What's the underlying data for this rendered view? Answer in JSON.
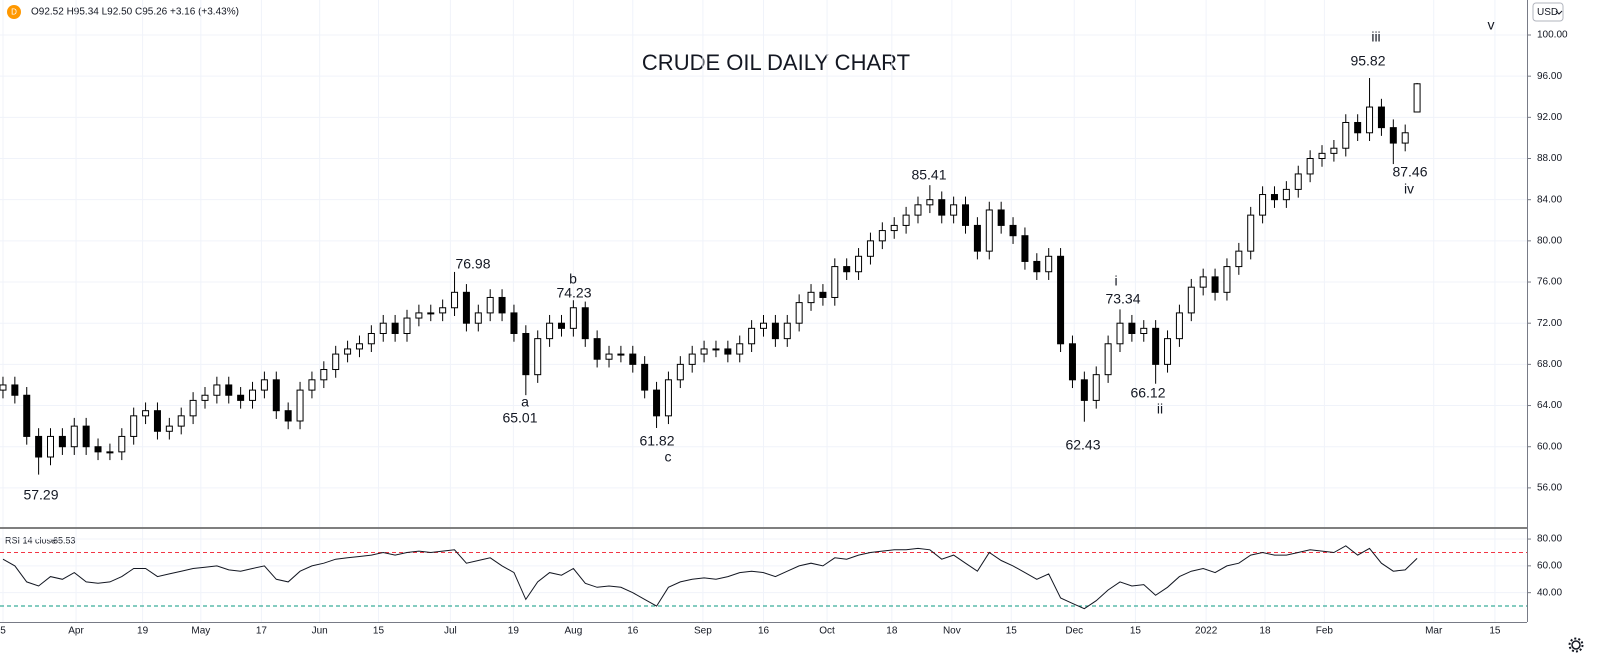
{
  "header": {
    "symbol_icon": "D",
    "ohlc": "O92.52 H95.34 L92.50 C95.26 +3.16 (+3.43%)",
    "currency": "USD"
  },
  "chart_data": [
    {
      "type": "candlestick",
      "title": "CRUDE OIL DAILY CHART",
      "grid": true,
      "up_color": "#ffffff",
      "down_color": "#000000",
      "edge_color": "#000000",
      "annotations": [
        "57.29",
        "a",
        "65.01",
        "76.98",
        "b",
        "74.23",
        "61.82",
        "c",
        "85.41",
        "i",
        "73.34",
        "62.43",
        "66.12",
        "ii",
        "iii",
        "95.82",
        "87.46",
        "iv",
        "v"
      ],
      "xlim": [
        -0.5,
        256.5
      ],
      "ylim": [
        52.2,
        103.4
      ],
      "yticks": [
        {
          "value": 56,
          "label": "56.00"
        },
        {
          "value": 60,
          "label": "60.00"
        },
        {
          "value": 64,
          "label": "64.00"
        },
        {
          "value": 68,
          "label": "68.00"
        },
        {
          "value": 72,
          "label": "72.00"
        },
        {
          "value": 76,
          "label": "76.00"
        },
        {
          "value": 80,
          "label": "80.00"
        },
        {
          "value": 84,
          "label": "84.00"
        },
        {
          "value": 88,
          "label": "88.00"
        },
        {
          "value": 92,
          "label": "92.00"
        },
        {
          "value": 96,
          "label": "96.00"
        },
        {
          "value": 100,
          "label": "100.00"
        }
      ],
      "x": [
        0,
        2,
        4,
        6,
        8,
        10,
        12,
        14,
        16,
        18,
        20,
        22,
        24,
        26,
        28,
        30,
        32,
        34,
        36,
        38,
        40,
        42,
        44,
        46,
        48,
        50,
        52,
        54,
        56,
        58,
        60,
        62,
        64,
        66,
        68,
        70,
        72,
        74,
        76,
        78,
        80,
        82,
        84,
        86,
        88,
        90,
        92,
        94,
        96,
        98,
        100,
        102,
        104,
        106,
        108,
        110,
        112,
        114,
        116,
        118,
        120,
        122,
        124,
        126,
        128,
        130,
        132,
        134,
        136,
        138,
        140,
        142,
        144,
        146,
        148,
        150,
        152,
        154,
        156,
        158,
        160,
        162,
        164,
        166,
        168,
        170,
        172,
        174,
        176,
        178,
        180,
        182,
        184,
        186,
        188,
        190,
        192,
        194,
        196,
        198,
        200,
        202,
        204,
        206,
        208,
        210,
        212,
        214,
        216,
        218,
        220,
        222,
        224,
        226,
        228,
        230,
        232,
        234,
        236,
        238
      ],
      "open": [
        65.5,
        66,
        65,
        61,
        59,
        61,
        60,
        62,
        60,
        59.5,
        59.5,
        61,
        63,
        63.5,
        61.5,
        62,
        63,
        64.5,
        65,
        66,
        65,
        64.5,
        65.5,
        66.5,
        63.5,
        62.5,
        65.5,
        66.5,
        67.5,
        69,
        69.5,
        70,
        71,
        72,
        71,
        72.5,
        73,
        73,
        73.5,
        75,
        72,
        73,
        74.5,
        73,
        71,
        67,
        70.5,
        72,
        71.5,
        73.5,
        70.5,
        68.5,
        69,
        69,
        68,
        65.5,
        63,
        66.5,
        68,
        69,
        69.5,
        69.5,
        69,
        70,
        71.5,
        72,
        70.5,
        72,
        74,
        75,
        74.5,
        77.5,
        77,
        78.5,
        80,
        81,
        81.5,
        82.5,
        83.5,
        84,
        82.5,
        83.5,
        81.5,
        79,
        83,
        81.5,
        80.5,
        78,
        77,
        78.5,
        70,
        66.5,
        64.5,
        67,
        70,
        72,
        71,
        71.5,
        68,
        70.5,
        73,
        75.5,
        76.5,
        75,
        77.5,
        79,
        82.5,
        84.5,
        84,
        85,
        86.5,
        88,
        88.5,
        89,
        91.5,
        90.5,
        93,
        91,
        89.5,
        92.52
      ],
      "high": [
        66.8,
        66.8,
        65.8,
        61.8,
        61.8,
        61.8,
        62.8,
        62.8,
        60.8,
        60.3,
        61.8,
        63.8,
        64.3,
        64.3,
        62.8,
        63.8,
        65.3,
        65.8,
        66.8,
        66.8,
        65.8,
        66.3,
        67.3,
        67.3,
        64.3,
        66.3,
        67.3,
        68.3,
        69.8,
        70.3,
        70.8,
        71.8,
        72.8,
        72.8,
        73.3,
        73.8,
        73.8,
        74.3,
        76.98,
        75.8,
        73.8,
        75.3,
        75.3,
        73.8,
        71.8,
        71.3,
        72.8,
        72.8,
        74.23,
        74.1,
        71.3,
        69.8,
        69.8,
        69.8,
        68.8,
        66.3,
        67.3,
        68.8,
        69.8,
        70.3,
        70.3,
        70.3,
        70.8,
        72.3,
        72.8,
        72.8,
        72.8,
        74.8,
        75.8,
        75.8,
        78.3,
        78.3,
        79.3,
        80.8,
        81.8,
        82.3,
        83.3,
        84.3,
        85.41,
        84.8,
        84.3,
        84.3,
        82.3,
        83.8,
        83.8,
        82.3,
        81.3,
        78.8,
        79.3,
        79.3,
        70.8,
        67.3,
        67.8,
        70.8,
        73.34,
        72.8,
        72.3,
        72.3,
        71.3,
        73.8,
        76.3,
        77.3,
        77.3,
        78.3,
        79.8,
        83.3,
        85.3,
        85.3,
        85.8,
        87.3,
        88.8,
        89.3,
        89.8,
        92.3,
        92.3,
        95.82,
        93.8,
        91.8,
        91.3,
        95.34
      ],
      "low": [
        64.7,
        64.2,
        60.2,
        57.29,
        58.2,
        59.2,
        59.2,
        59.2,
        58.7,
        58.7,
        58.7,
        60.2,
        62.2,
        60.7,
        60.7,
        61.2,
        62.2,
        63.7,
        64.2,
        64.2,
        63.7,
        63.7,
        64.7,
        62.7,
        61.7,
        61.7,
        64.7,
        65.7,
        66.7,
        68.2,
        68.7,
        69.2,
        70.2,
        70.2,
        70.2,
        71.7,
        72.2,
        72.2,
        72.7,
        71.2,
        71.2,
        72.2,
        72.2,
        70.2,
        65.01,
        66.2,
        69.7,
        70.7,
        70.7,
        69.7,
        67.7,
        67.7,
        68.2,
        67.2,
        64.7,
        61.82,
        62.2,
        65.7,
        67.2,
        68.2,
        68.7,
        68.2,
        68.2,
        69.2,
        70.7,
        69.7,
        69.7,
        71.2,
        73.2,
        73.7,
        73.7,
        76.2,
        76.2,
        77.7,
        79.2,
        80.2,
        80.7,
        81.7,
        82.7,
        81.7,
        81.7,
        80.7,
        78.2,
        78.2,
        80.7,
        79.7,
        77.2,
        76.2,
        76.2,
        69.2,
        65.7,
        62.43,
        63.7,
        66.2,
        69.2,
        70.2,
        70.2,
        66.12,
        67.2,
        69.7,
        72.2,
        74.7,
        74.2,
        74.2,
        76.7,
        78.2,
        81.7,
        83.2,
        83.2,
        84.2,
        85.7,
        87.2,
        87.7,
        88.2,
        89.7,
        89.7,
        90.2,
        87.46,
        88.7,
        92.5
      ],
      "close": [
        66,
        65,
        61,
        59,
        61,
        60,
        62,
        60,
        59.5,
        59.5,
        61,
        63,
        63.5,
        61.5,
        62,
        63,
        64.5,
        65,
        66,
        65,
        64.5,
        65.5,
        66.5,
        63.5,
        62.5,
        65.5,
        66.5,
        67.5,
        69,
        69.5,
        70,
        71,
        72,
        71,
        72.5,
        73,
        73,
        73.5,
        75,
        72,
        73,
        74.5,
        73,
        71,
        67,
        70.5,
        72,
        71.5,
        73.5,
        70.5,
        68.5,
        69,
        69,
        68,
        65.5,
        63,
        66.5,
        68,
        69,
        69.5,
        69.5,
        69,
        70,
        71.5,
        72,
        70.5,
        72,
        74,
        75,
        74.5,
        77.5,
        77,
        78.5,
        80,
        81,
        81.5,
        82.5,
        83.5,
        84,
        82.5,
        83.5,
        81.5,
        79,
        83,
        81.5,
        80.5,
        78,
        77,
        78.5,
        70,
        66.5,
        64.5,
        67,
        70,
        72,
        71,
        71.5,
        68,
        70.5,
        73,
        75.5,
        76.5,
        75,
        77.5,
        79,
        82.5,
        84.5,
        84,
        85,
        86.5,
        88,
        88.5,
        89,
        91.5,
        90.5,
        93,
        91,
        89.5,
        90.5,
        95.26
      ]
    },
    {
      "type": "line",
      "name": "RSI 14 close",
      "color": "#131722",
      "grid": true,
      "hlines": [
        {
          "value": 70,
          "color": "#f23645"
        },
        {
          "value": 30,
          "color": "#089981"
        }
      ],
      "xlim": [
        -0.5,
        256.5
      ],
      "ylim": [
        18.1,
        87.5
      ],
      "yticks": [
        {
          "value": 40,
          "label": "40.00"
        },
        {
          "value": 60,
          "label": "60.00"
        },
        {
          "value": 80,
          "label": "80.00"
        }
      ],
      "xticks": [
        {
          "value": 0,
          "label": "5"
        },
        {
          "value": 12.3,
          "label": "Apr"
        },
        {
          "value": 23.5,
          "label": "19"
        },
        {
          "value": 33.3,
          "label": "May"
        },
        {
          "value": 43.5,
          "label": "17"
        },
        {
          "value": 53.3,
          "label": "Jun"
        },
        {
          "value": 63.2,
          "label": "15"
        },
        {
          "value": 75.3,
          "label": "Jul"
        },
        {
          "value": 85.9,
          "label": "19"
        },
        {
          "value": 96,
          "label": "Aug"
        },
        {
          "value": 106,
          "label": "16"
        },
        {
          "value": 117.8,
          "label": "Sep"
        },
        {
          "value": 128,
          "label": "16"
        },
        {
          "value": 138.7,
          "label": "Oct"
        },
        {
          "value": 149.6,
          "label": "18"
        },
        {
          "value": 159.7,
          "label": "Nov"
        },
        {
          "value": 169.7,
          "label": "15"
        },
        {
          "value": 180.3,
          "label": "Dec"
        },
        {
          "value": 190.6,
          "label": "15"
        },
        {
          "value": 202.5,
          "label": "2022"
        },
        {
          "value": 212.4,
          "label": "18"
        },
        {
          "value": 222.4,
          "label": "Feb"
        },
        {
          "value": 240.8,
          "label": "Mar"
        },
        {
          "value": 251.1,
          "label": "15"
        }
      ],
      "x": [
        0,
        2,
        4,
        6,
        8,
        10,
        12,
        14,
        16,
        18,
        20,
        22,
        24,
        26,
        28,
        30,
        32,
        34,
        36,
        38,
        40,
        42,
        44,
        46,
        48,
        50,
        52,
        54,
        56,
        58,
        60,
        62,
        64,
        66,
        68,
        70,
        72,
        74,
        76,
        78,
        80,
        82,
        84,
        86,
        88,
        90,
        92,
        94,
        96,
        98,
        100,
        102,
        104,
        106,
        108,
        110,
        112,
        114,
        116,
        118,
        120,
        122,
        124,
        126,
        128,
        130,
        132,
        134,
        136,
        138,
        140,
        142,
        144,
        146,
        148,
        150,
        152,
        154,
        156,
        158,
        160,
        162,
        164,
        166,
        168,
        170,
        172,
        174,
        176,
        178,
        180,
        182,
        184,
        186,
        188,
        190,
        192,
        194,
        196,
        198,
        200,
        202,
        204,
        206,
        208,
        210,
        212,
        214,
        216,
        218,
        220,
        222,
        224,
        226,
        228,
        230,
        232,
        234,
        236,
        238
      ],
      "values": [
        65,
        60,
        48,
        45,
        52,
        50,
        55,
        48,
        47,
        48,
        52,
        58,
        58,
        52,
        54,
        56,
        58,
        59,
        60,
        57,
        56,
        58,
        60,
        50,
        48,
        56,
        60,
        62,
        65,
        66,
        67,
        68,
        70,
        68,
        70,
        71,
        70,
        71,
        72,
        62,
        64,
        66,
        60,
        55,
        35,
        48,
        55,
        53,
        58,
        47,
        44,
        45,
        44,
        40,
        35,
        30,
        44,
        48,
        50,
        51,
        50,
        52,
        55,
        56,
        55,
        52,
        56,
        60,
        62,
        60,
        66,
        65,
        68,
        70,
        71,
        72,
        72,
        73,
        72,
        65,
        68,
        62,
        56,
        70,
        64,
        60,
        55,
        50,
        54,
        36,
        32,
        28,
        34,
        42,
        48,
        45,
        46,
        38,
        44,
        52,
        56,
        58,
        55,
        60,
        62,
        68,
        70,
        68,
        68,
        70,
        72,
        71,
        70,
        75,
        68,
        73,
        62,
        56,
        57,
        65.53
      ]
    }
  ]
}
